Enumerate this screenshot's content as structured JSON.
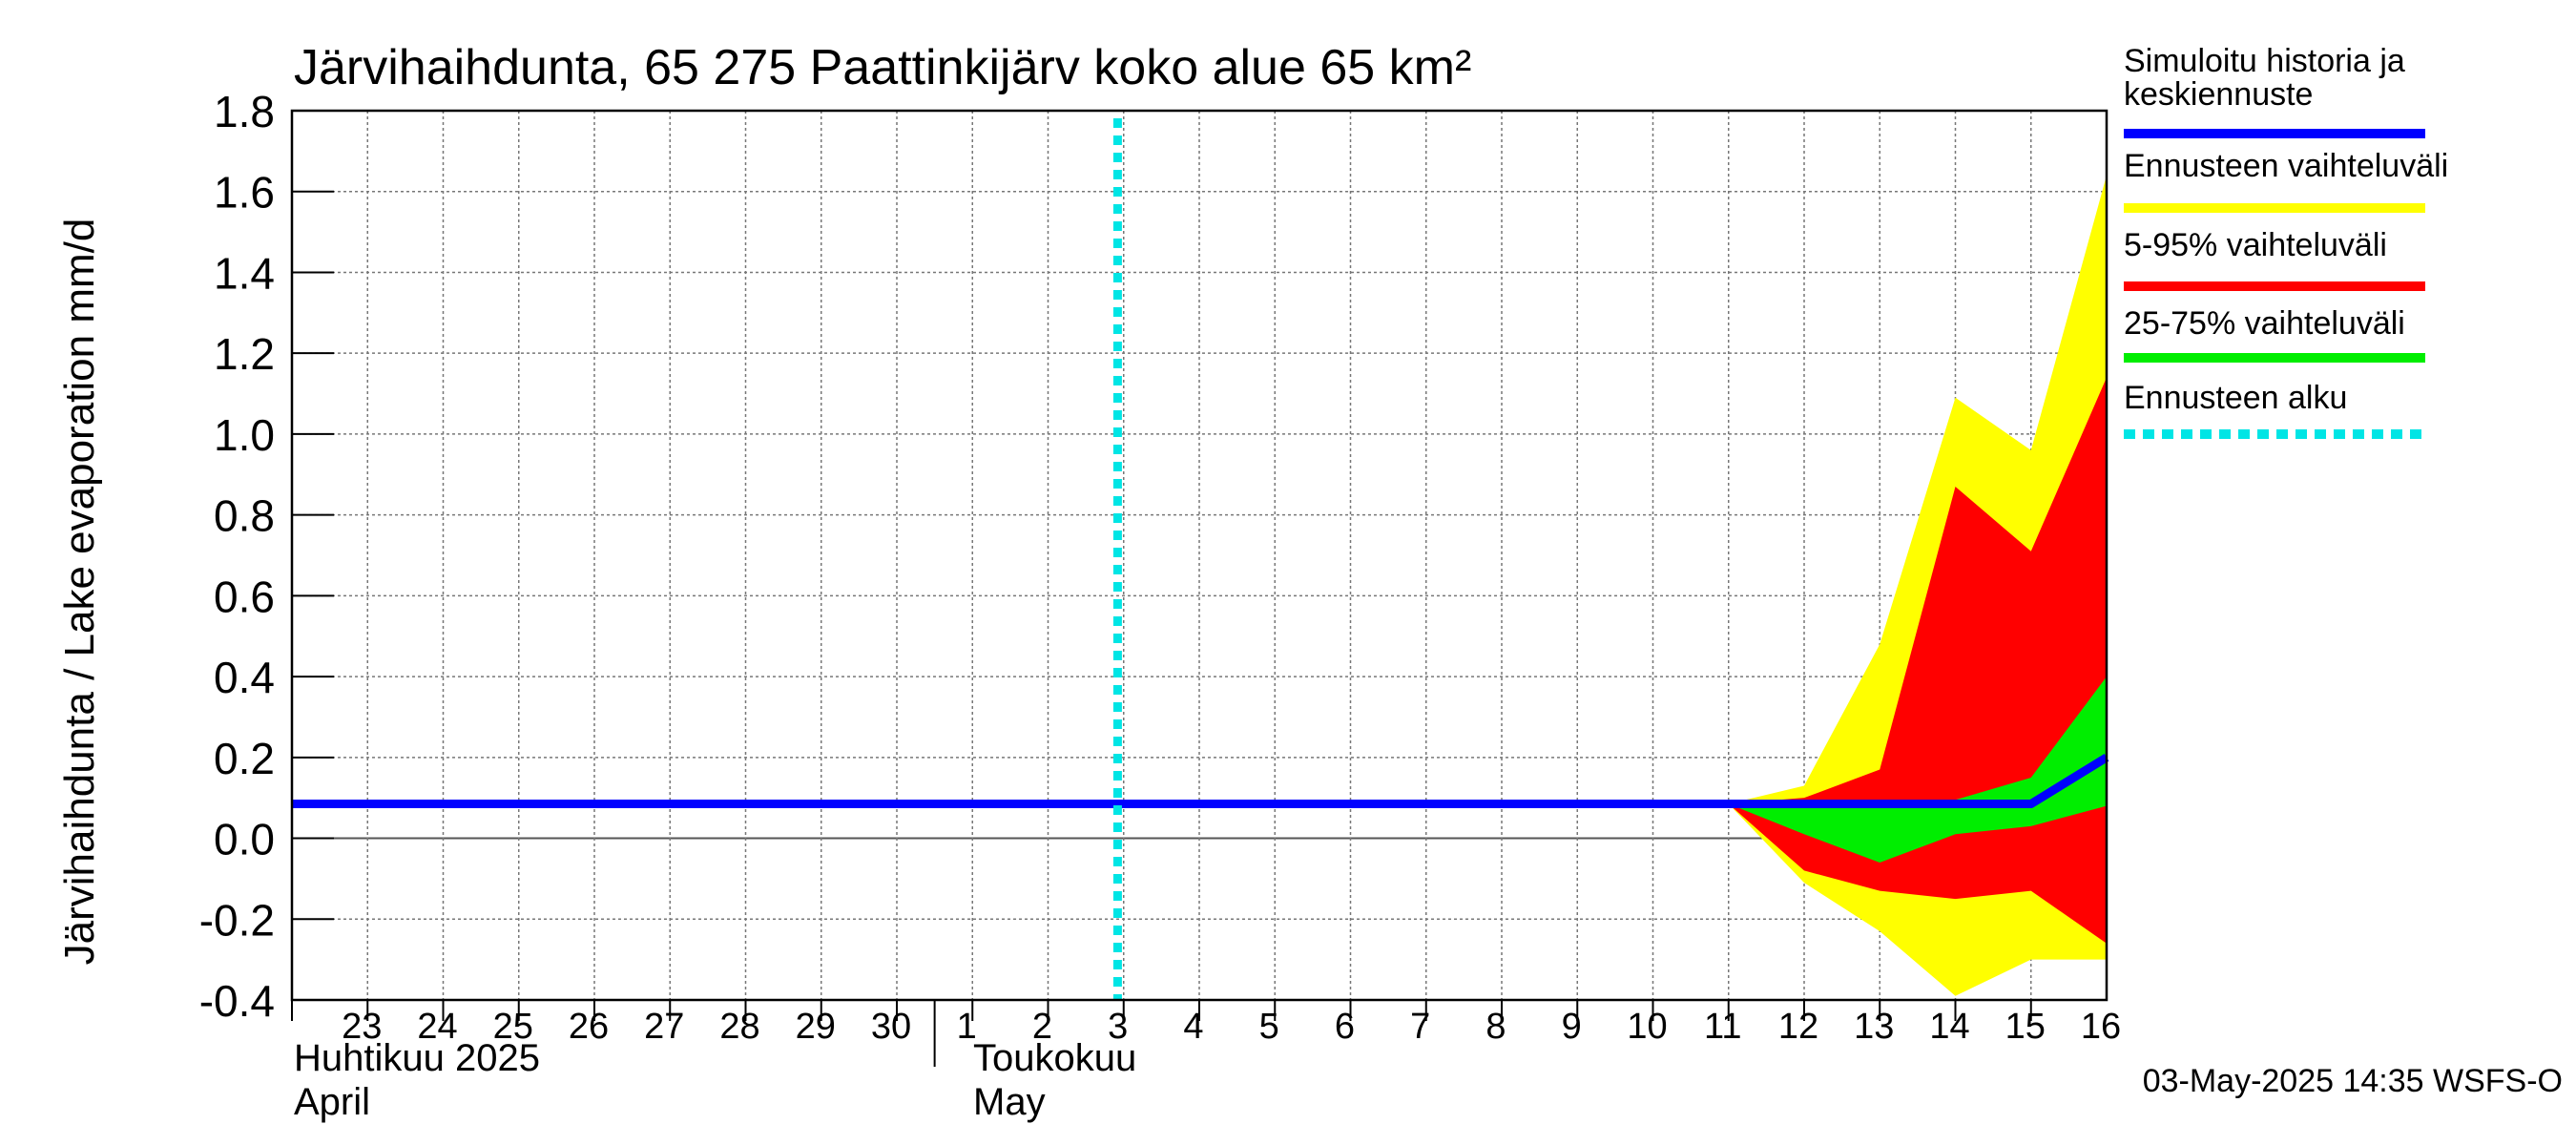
{
  "chart_data": {
    "type": "area",
    "title": "Järvihaihdunta, 65 275 Paattinkijärv koko alue 65 km²",
    "ylabel": "Järvihaihdunta / Lake evaporation   mm/d",
    "ylim": [
      -0.4,
      1.8
    ],
    "yticks": [
      -0.4,
      -0.2,
      0.0,
      0.2,
      0.4,
      0.6,
      0.8,
      1.0,
      1.2,
      1.4,
      1.6,
      1.8
    ],
    "ytick_labels": [
      "-0.4",
      "-0.2",
      "0.0",
      "0.2",
      "0.4",
      "0.6",
      "0.8",
      "1.0",
      "1.2",
      "1.4",
      "1.6",
      "1.8"
    ],
    "x_start_index": -1,
    "x_end_index": 23,
    "day_labels": [
      "23",
      "24",
      "25",
      "26",
      "27",
      "28",
      "29",
      "30",
      "1",
      "2",
      "3",
      "4",
      "5",
      "6",
      "7",
      "8",
      "9",
      "10",
      "11",
      "12",
      "13",
      "14",
      "15",
      "16"
    ],
    "month_boundary_index": 7,
    "month_labels": {
      "april_fi": "Huhtikuu  2025",
      "april_en": "April",
      "may_fi": "Toukokuu",
      "may_en": "May"
    },
    "forecast_start_index": 9.92,
    "series": [
      {
        "name": "Ennusteen vaihteluväli",
        "color": "#ffff00",
        "x": [
          18,
          19,
          20,
          21,
          22,
          23
        ],
        "upper": [
          0.085,
          0.13,
          0.48,
          1.09,
          0.96,
          1.64
        ],
        "lower": [
          0.085,
          -0.11,
          -0.23,
          -0.39,
          -0.3,
          -0.3
        ]
      },
      {
        "name": "5-95% vaihteluväli",
        "color": "#ff0000",
        "x": [
          18,
          19,
          20,
          21,
          22,
          23
        ],
        "upper": [
          0.085,
          0.1,
          0.17,
          0.87,
          0.71,
          1.14
        ],
        "lower": [
          0.085,
          -0.08,
          -0.13,
          -0.15,
          -0.13,
          -0.26
        ]
      },
      {
        "name": "25-75% vaihteluväli",
        "color": "#00ee00",
        "x": [
          18,
          19,
          20,
          21,
          22,
          23
        ],
        "upper": [
          0.085,
          0.085,
          0.085,
          0.095,
          0.15,
          0.4
        ],
        "lower": [
          0.085,
          0.01,
          -0.06,
          0.01,
          0.03,
          0.08
        ]
      },
      {
        "name": "Simuloitu historia ja keskiennuste",
        "color": "#0000ff",
        "x": [
          -1,
          18,
          19,
          20,
          21,
          22,
          23
        ],
        "values": [
          0.085,
          0.085,
          0.085,
          0.085,
          0.085,
          0.085,
          0.2
        ]
      }
    ],
    "legend": [
      {
        "label": "Simuloitu historia ja keskiennuste",
        "color": "#0000ff",
        "style": "solid"
      },
      {
        "label": "Ennusteen vaihteluväli",
        "color": "#ffff00",
        "style": "solid"
      },
      {
        "label": "5-95% vaihteluväli",
        "color": "#ff0000",
        "style": "solid"
      },
      {
        "label": "25-75% vaihteluväli",
        "color": "#00ee00",
        "style": "solid"
      },
      {
        "label": "Ennusteen alku",
        "color": "#00e5e5",
        "style": "dotted"
      }
    ],
    "footer": "03-May-2025 14:35 WSFS-O"
  }
}
